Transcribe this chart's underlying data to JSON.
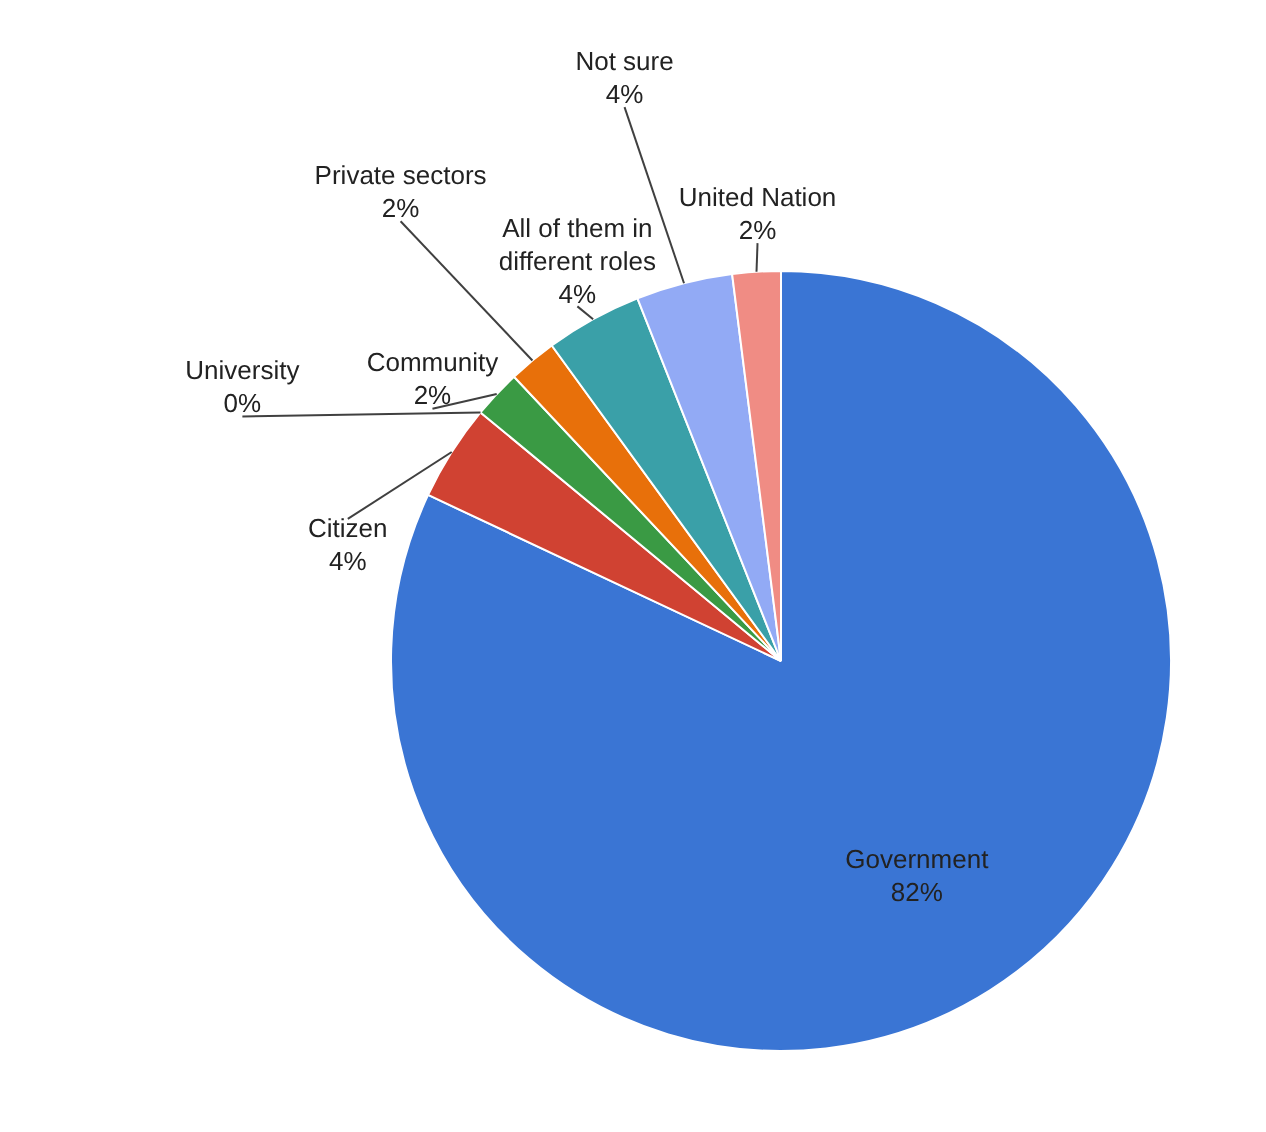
{
  "chart_data": {
    "type": "pie",
    "categories": [
      "Government",
      "Citizen",
      "University",
      "Community",
      "Private sectors",
      "All of them in different roles",
      "Not sure",
      "United Nation"
    ],
    "values": [
      82,
      4,
      0,
      2,
      2,
      4,
      4,
      2
    ],
    "colors": [
      "#3a75d4",
      "#d04232",
      "#2e7fd0",
      "#3a9a44",
      "#e8700a",
      "#3aa0a8",
      "#92aaf5",
      "#f08c84"
    ],
    "value_labels": [
      "82%",
      "4%",
      "0%",
      "2%",
      "2%",
      "4%",
      "4%",
      "2%"
    ]
  }
}
